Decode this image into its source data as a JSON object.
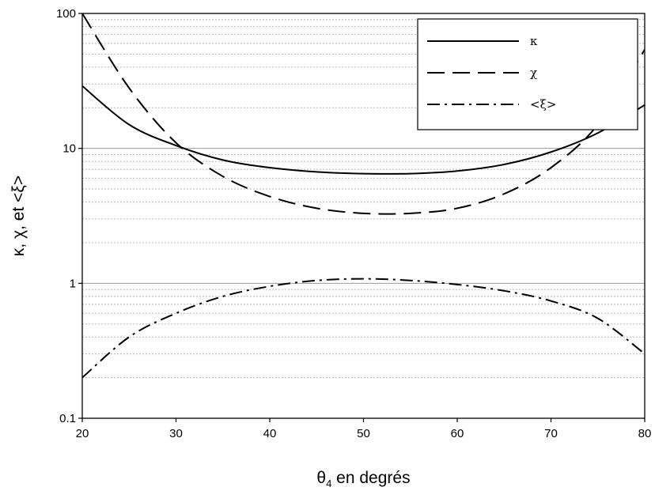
{
  "chart_data": {
    "type": "line",
    "title": "",
    "xlabel_symbol": "θ",
    "xlabel_sub": "4",
    "xlabel_rest": " en degrés",
    "ylabel": "κ, χ, et <ξ>",
    "xlim": [
      20,
      80
    ],
    "ylim": [
      0.1,
      100
    ],
    "yscale": "log",
    "xticks": [
      20,
      30,
      40,
      50,
      60,
      70,
      80
    ],
    "yticks": [
      0.1,
      1,
      10,
      100
    ],
    "ytick_labels": [
      "0.1",
      "1",
      "10",
      "100"
    ],
    "grid": "horizontal major and minor",
    "legend_position": "top-right",
    "series": [
      {
        "name": "κ",
        "style": "solid",
        "x": [
          20,
          25,
          30,
          35,
          40,
          45,
          50,
          55,
          60,
          65,
          70,
          75,
          80
        ],
        "y": [
          29,
          15,
          10.5,
          8.2,
          7.2,
          6.7,
          6.5,
          6.5,
          6.8,
          7.6,
          9.4,
          13,
          21
        ]
      },
      {
        "name": "χ",
        "style": "dashed",
        "x": [
          20,
          25,
          30,
          35,
          40,
          45,
          50,
          55,
          60,
          65,
          70,
          75,
          80
        ],
        "y": [
          100,
          28,
          11,
          6.2,
          4.4,
          3.6,
          3.3,
          3.3,
          3.6,
          4.6,
          7.2,
          15,
          54
        ]
      },
      {
        "name": "<ξ>",
        "style": "dashdot",
        "x": [
          20,
          25,
          30,
          35,
          40,
          45,
          50,
          55,
          60,
          65,
          70,
          75,
          80
        ],
        "y": [
          0.2,
          0.4,
          0.6,
          0.8,
          0.95,
          1.05,
          1.08,
          1.05,
          0.98,
          0.88,
          0.74,
          0.55,
          0.3
        ]
      }
    ]
  }
}
